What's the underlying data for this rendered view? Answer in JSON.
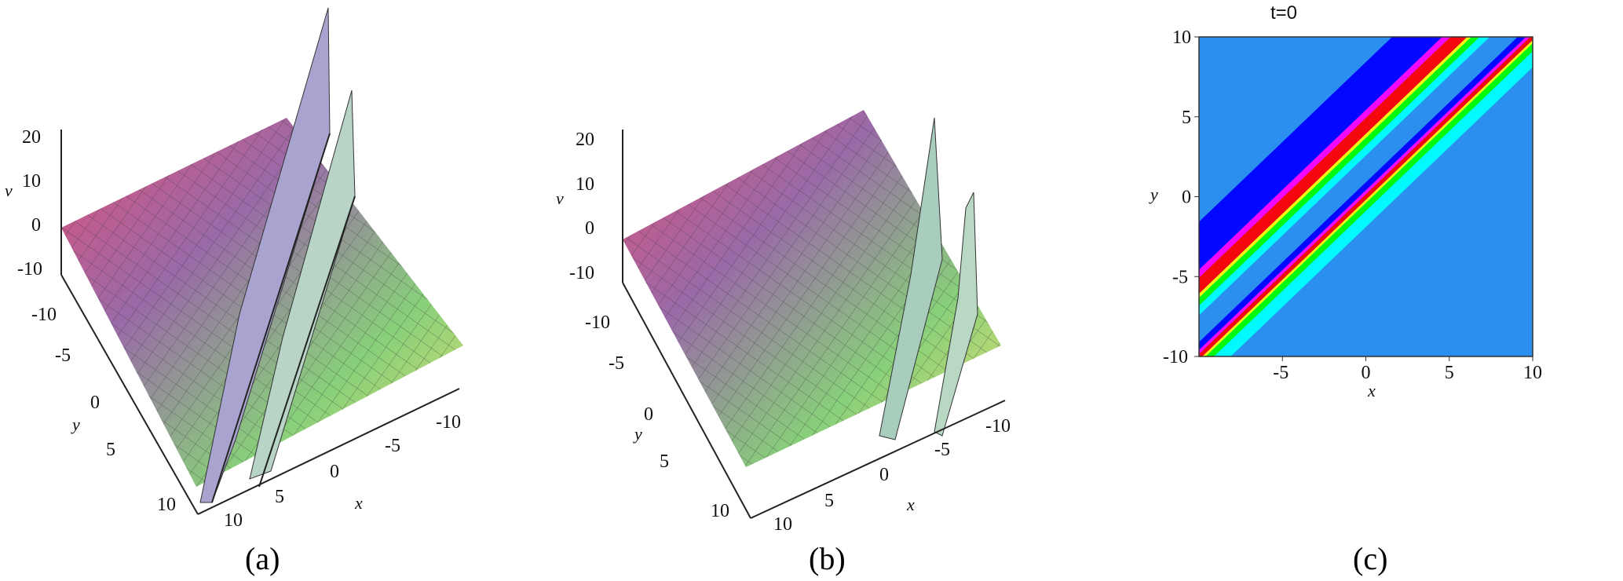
{
  "panels": [
    {
      "caption": "(a)",
      "zlabel": "v",
      "xlabel": "x",
      "ylabel": "y",
      "z_ticks": [
        "20",
        "10",
        "0",
        "-10"
      ],
      "y_ticks": [
        "-10",
        "-5",
        "0",
        "5",
        "10"
      ],
      "x_ticks": [
        "10",
        "5",
        "0",
        "-5",
        "-10"
      ]
    },
    {
      "caption": "(b)",
      "zlabel": "v",
      "xlabel": "x",
      "ylabel": "y",
      "z_ticks": [
        "20",
        "10",
        "0",
        "-10"
      ],
      "y_ticks": [
        "-10",
        "-5",
        "0",
        "5",
        "10"
      ],
      "x_ticks": [
        "10",
        "5",
        "0",
        "-5",
        "-10"
      ]
    },
    {
      "caption": "(c)",
      "title": "t=0",
      "xlabel": "x",
      "ylabel": "y",
      "x_ticks": [
        "-5",
        "0",
        "5",
        "10"
      ],
      "y_ticks": [
        "10",
        "5",
        "0",
        "-5",
        "-10"
      ]
    }
  ],
  "chart_data": [
    {
      "type": "surface3d",
      "panel": "a",
      "x_range": [
        -10,
        10
      ],
      "y_range": [
        -10,
        10
      ],
      "z_range": [
        -10,
        20
      ],
      "colormap": [
        "#e0507a",
        "#9a6aa8",
        "#88d07a",
        "#e8e070"
      ],
      "features": "two parallel line-soliton ridges with sharp spikes reaching about 20 and dips to about -10"
    },
    {
      "type": "surface3d",
      "panel": "b",
      "x_range": [
        -10,
        10
      ],
      "y_range": [
        -10,
        10
      ],
      "z_range": [
        -10,
        20
      ],
      "colormap": [
        "#e0507a",
        "#9a6aa8",
        "#88d07a",
        "#e8e070"
      ],
      "features": "two short parallel ridges near x between -5 and 0"
    },
    {
      "type": "heatmap",
      "panel": "c",
      "title": "t=0",
      "xlabel": "x",
      "ylabel": "y",
      "xlim": [
        -10,
        10
      ],
      "ylim": [
        -10,
        10
      ],
      "x_ticks": [
        -5,
        0,
        5,
        10
      ],
      "y_ticks": [
        -10,
        -5,
        0,
        5,
        10
      ],
      "background_color": "#2b8ff0",
      "bands": [
        {
          "line": "y = x + 5.5",
          "colors": [
            "#0000ff",
            "#ff00ff",
            "#ff0000",
            "#ffff00",
            "#00ff00",
            "#00ffff"
          ]
        },
        {
          "line": "y = x - 0.5",
          "colors": [
            "#0000ff",
            "#ff00ff",
            "#ff0000",
            "#ffff00",
            "#00ff00",
            "#00ffff"
          ]
        }
      ]
    }
  ]
}
